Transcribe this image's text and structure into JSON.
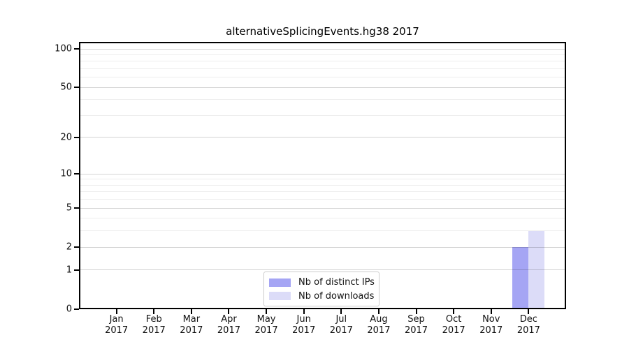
{
  "title": "alternativeSplicingEvents.hg38 2017",
  "legend": {
    "items": [
      {
        "label": "Nb of distinct IPs",
        "color": "#a5a5f4"
      },
      {
        "label": "Nb of downloads",
        "color": "#dcdcf8"
      }
    ]
  },
  "chart_data": {
    "type": "bar",
    "title": "alternativeSplicingEvents.hg38 2017",
    "categories": [
      "Jan 2017",
      "Feb 2017",
      "Mar 2017",
      "Apr 2017",
      "May 2017",
      "Jun 2017",
      "Jul 2017",
      "Aug 2017",
      "Sep 2017",
      "Oct 2017",
      "Nov 2017",
      "Dec 2017"
    ],
    "series": [
      {
        "name": "Nb of distinct IPs",
        "color": "#a5a5f4",
        "values": [
          0,
          0,
          0,
          0,
          0,
          0,
          0,
          0,
          0,
          0,
          0,
          2
        ]
      },
      {
        "name": "Nb of downloads",
        "color": "#dcdcf8",
        "values": [
          0,
          0,
          0,
          0,
          0,
          0,
          0,
          0,
          0,
          0,
          0,
          3
        ]
      }
    ],
    "xlabel": "",
    "ylabel": "",
    "yscale": "log1p",
    "ylim": [
      0,
      100
    ],
    "yticks": [
      0,
      1,
      2,
      5,
      10,
      20,
      50,
      100
    ],
    "minor_yticks": [
      3,
      4,
      6,
      7,
      8,
      9,
      30,
      40,
      60,
      70,
      80,
      90
    ],
    "grid": "horizontal",
    "legend_position": "inside-lower-center"
  }
}
